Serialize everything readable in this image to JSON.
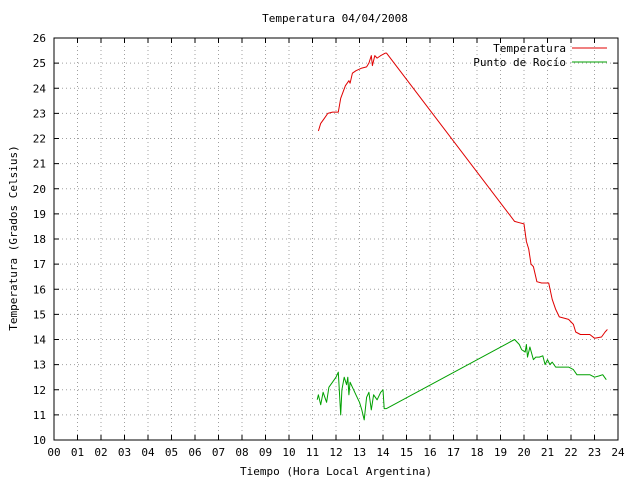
{
  "chart_data": {
    "type": "line",
    "title": "Temperatura 04/04/2008",
    "xlabel": "Tiempo (Hora Local Argentina)",
    "ylabel": "Temperatura (Grados Celsius)",
    "xlim": [
      0,
      24
    ],
    "ylim": [
      10,
      26
    ],
    "grid": true,
    "legend_position": "top-right",
    "x_tick_labels": [
      "00",
      "01",
      "02",
      "03",
      "04",
      "05",
      "06",
      "07",
      "08",
      "09",
      "10",
      "11",
      "12",
      "13",
      "14",
      "15",
      "16",
      "17",
      "18",
      "19",
      "20",
      "21",
      "22",
      "23",
      "24"
    ],
    "y_tick_labels": [
      "10",
      "11",
      "12",
      "13",
      "14",
      "15",
      "16",
      "17",
      "18",
      "19",
      "20",
      "21",
      "22",
      "23",
      "24",
      "25",
      "26"
    ],
    "series": [
      {
        "name": "Temperatura",
        "color": "#e00000",
        "points": [
          [
            11.25,
            22.3
          ],
          [
            11.35,
            22.6
          ],
          [
            11.5,
            22.8
          ],
          [
            11.65,
            23.0
          ],
          [
            11.85,
            23.05
          ],
          [
            12.1,
            23.05
          ],
          [
            12.2,
            23.6
          ],
          [
            12.4,
            24.1
          ],
          [
            12.55,
            24.3
          ],
          [
            12.6,
            24.2
          ],
          [
            12.7,
            24.6
          ],
          [
            12.85,
            24.7
          ],
          [
            13.1,
            24.8
          ],
          [
            13.3,
            24.85
          ],
          [
            13.4,
            25.0
          ],
          [
            13.5,
            25.3
          ],
          [
            13.55,
            24.9
          ],
          [
            13.65,
            25.3
          ],
          [
            13.75,
            25.2
          ],
          [
            13.9,
            25.3
          ],
          [
            14.1,
            25.4
          ],
          [
            14.15,
            25.4
          ],
          [
            19.6,
            18.7
          ],
          [
            19.8,
            18.65
          ],
          [
            20.0,
            18.6
          ],
          [
            20.1,
            17.9
          ],
          [
            20.2,
            17.6
          ],
          [
            20.3,
            17.0
          ],
          [
            20.4,
            16.9
          ],
          [
            20.55,
            16.3
          ],
          [
            20.75,
            16.25
          ],
          [
            21.05,
            16.25
          ],
          [
            21.2,
            15.6
          ],
          [
            21.35,
            15.2
          ],
          [
            21.5,
            14.9
          ],
          [
            21.7,
            14.85
          ],
          [
            21.9,
            14.8
          ],
          [
            22.1,
            14.6
          ],
          [
            22.2,
            14.3
          ],
          [
            22.4,
            14.2
          ],
          [
            22.8,
            14.2
          ],
          [
            23.0,
            14.05
          ],
          [
            23.3,
            14.1
          ],
          [
            23.45,
            14.3
          ],
          [
            23.55,
            14.4
          ]
        ]
      },
      {
        "name": "Punto de Rocío",
        "color": "#00a000",
        "points": [
          [
            11.2,
            11.6
          ],
          [
            11.25,
            11.8
          ],
          [
            11.35,
            11.4
          ],
          [
            11.45,
            11.9
          ],
          [
            11.6,
            11.5
          ],
          [
            11.7,
            12.1
          ],
          [
            11.85,
            12.3
          ],
          [
            12.0,
            12.5
          ],
          [
            12.1,
            12.7
          ],
          [
            12.2,
            11.0
          ],
          [
            12.25,
            12.0
          ],
          [
            12.35,
            12.5
          ],
          [
            12.45,
            12.2
          ],
          [
            12.5,
            12.5
          ],
          [
            12.55,
            11.8
          ],
          [
            12.6,
            12.3
          ],
          [
            12.75,
            12.0
          ],
          [
            12.9,
            11.7
          ],
          [
            13.0,
            11.5
          ],
          [
            13.1,
            11.2
          ],
          [
            13.2,
            10.8
          ],
          [
            13.3,
            11.7
          ],
          [
            13.4,
            11.9
          ],
          [
            13.5,
            11.2
          ],
          [
            13.6,
            11.8
          ],
          [
            13.75,
            11.6
          ],
          [
            13.9,
            11.9
          ],
          [
            14.0,
            12.0
          ],
          [
            14.05,
            11.25
          ],
          [
            14.15,
            11.25
          ],
          [
            19.6,
            14.0
          ],
          [
            19.8,
            13.8
          ],
          [
            19.9,
            13.6
          ],
          [
            20.05,
            13.5
          ],
          [
            20.1,
            13.8
          ],
          [
            20.15,
            13.3
          ],
          [
            20.25,
            13.7
          ],
          [
            20.4,
            13.2
          ],
          [
            20.5,
            13.3
          ],
          [
            20.65,
            13.3
          ],
          [
            20.8,
            13.35
          ],
          [
            20.9,
            13.0
          ],
          [
            21.0,
            13.2
          ],
          [
            21.1,
            13.0
          ],
          [
            21.2,
            13.1
          ],
          [
            21.35,
            12.9
          ],
          [
            21.6,
            12.9
          ],
          [
            21.9,
            12.9
          ],
          [
            22.1,
            12.8
          ],
          [
            22.25,
            12.6
          ],
          [
            22.5,
            12.6
          ],
          [
            22.8,
            12.6
          ],
          [
            23.0,
            12.5
          ],
          [
            23.2,
            12.55
          ],
          [
            23.35,
            12.6
          ],
          [
            23.5,
            12.4
          ]
        ]
      }
    ]
  }
}
